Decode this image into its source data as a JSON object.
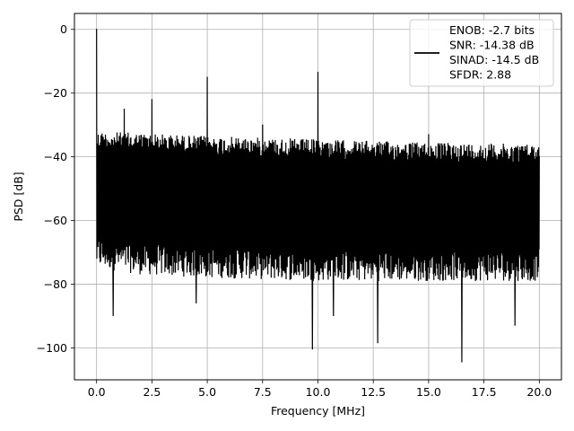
{
  "chart_data": {
    "type": "line",
    "title": "",
    "xlabel": "Frequency [MHz]",
    "ylabel": "PSD [dB]",
    "xlim": [
      -1.0,
      21.0
    ],
    "ylim": [
      -110,
      5
    ],
    "xticks": [
      0.0,
      2.5,
      5.0,
      7.5,
      10.0,
      12.5,
      15.0,
      17.5,
      20.0
    ],
    "xtick_labels": [
      "0.0",
      "2.5",
      "5.0",
      "7.5",
      "10.0",
      "12.5",
      "15.0",
      "17.5",
      "20.0"
    ],
    "yticks": [
      0,
      -20,
      -40,
      -60,
      -80,
      -100
    ],
    "ytick_labels": [
      "0",
      "−20",
      "−40",
      "−60",
      "−80",
      "−100"
    ],
    "grid": true,
    "legend_position": "upper right",
    "series_color": "#000000",
    "series": [
      {
        "name": "ENOB: -2.7 bits\nSNR: -14.38 dB\nSINAD: -14.5 dB\nSFDR: 2.88",
        "floor_upper_db": {
          "x": [
            0.1,
            2.0,
            5.0,
            10.0,
            15.0,
            20.0
          ],
          "y": [
            -32,
            -32.5,
            -33.5,
            -34.5,
            -35.5,
            -36
          ]
        },
        "floor_lower_db": {
          "x": [
            0.1,
            2.0,
            5.0,
            10.0,
            15.0,
            20.0
          ],
          "y": [
            -72,
            -74,
            -75,
            -76,
            -76,
            -76
          ]
        },
        "peaks": [
          {
            "x": 0.0,
            "y": 0
          },
          {
            "x": 1.25,
            "y": -25
          },
          {
            "x": 2.5,
            "y": -22
          },
          {
            "x": 5.0,
            "y": -15
          },
          {
            "x": 7.5,
            "y": -30
          },
          {
            "x": 10.0,
            "y": -13.5
          },
          {
            "x": 15.0,
            "y": -33
          }
        ],
        "dips": [
          {
            "x": 0.75,
            "y": -90
          },
          {
            "x": 4.5,
            "y": -86
          },
          {
            "x": 9.75,
            "y": -100.5
          },
          {
            "x": 10.7,
            "y": -90
          },
          {
            "x": 12.7,
            "y": -98.5
          },
          {
            "x": 16.5,
            "y": -104.5
          },
          {
            "x": 18.9,
            "y": -93
          }
        ]
      }
    ],
    "legend_lines": [
      "ENOB: -2.7 bits",
      "SNR: -14.38 dB",
      "SINAD: -14.5 dB",
      "SFDR: 2.88"
    ]
  }
}
